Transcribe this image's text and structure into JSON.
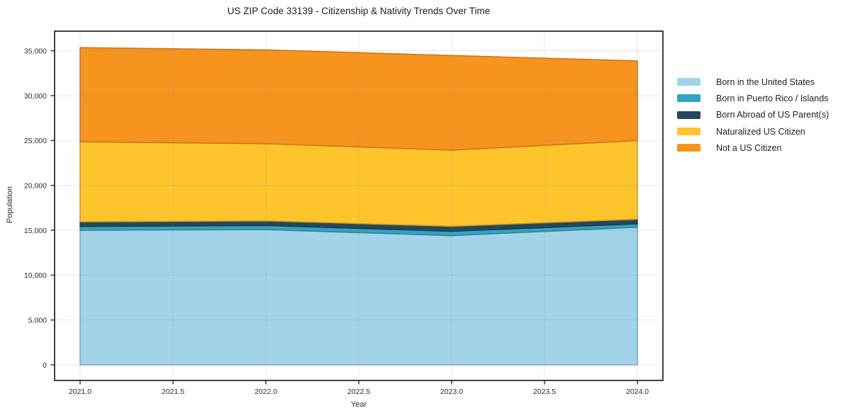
{
  "chart_data": {
    "type": "area",
    "stacked": true,
    "title": "US ZIP Code 33139 - Citizenship & Nativity Trends Over Time",
    "xlabel": "Year",
    "ylabel": "Population",
    "x": [
      2021,
      2022,
      2023,
      2024
    ],
    "xticks": [
      2021.0,
      2021.5,
      2022.0,
      2022.5,
      2023.0,
      2023.5,
      2024.0
    ],
    "xtick_labels": [
      "2021.0",
      "2021.5",
      "2022.0",
      "2022.5",
      "2023.0",
      "2023.5",
      "2024.0"
    ],
    "yticks": [
      0,
      5000,
      10000,
      15000,
      20000,
      25000,
      30000,
      35000
    ],
    "ytick_labels": [
      "0",
      "5,000",
      "10,000",
      "15,000",
      "20,000",
      "25,000",
      "30,000",
      "35,000"
    ],
    "ylim": [
      -1767,
      37117
    ],
    "grid": true,
    "legend_position": "right",
    "series": [
      {
        "name": "Born in the United States",
        "color": "#a2d3e8",
        "values": [
          15000,
          15080,
          14400,
          15340
        ]
      },
      {
        "name": "Born in Puerto Rico / Islands",
        "color": "#33a3c2",
        "values": [
          420,
          450,
          480,
          370
        ]
      },
      {
        "name": "Born Abroad of US Parent(s)",
        "color": "#25485c",
        "values": [
          530,
          520,
          570,
          530
        ]
      },
      {
        "name": "Naturalized US Citizen",
        "color": "#fdc42c",
        "values": [
          8900,
          8600,
          8480,
          8760
        ]
      },
      {
        "name": "Not a US Citizen",
        "color": "#f7941e",
        "values": [
          10500,
          10450,
          10550,
          8870
        ]
      }
    ],
    "stacked_totals": [
      35350,
      35100,
      34480,
      33870
    ],
    "frame_color": "#2e2e2e",
    "grid_color": "#e7e7e7",
    "text_color": "#2b2b2b"
  }
}
